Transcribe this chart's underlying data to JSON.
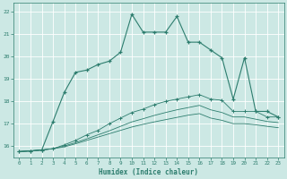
{
  "title": "",
  "xlabel": "Humidex (Indice chaleur)",
  "bg_color": "#cce8e4",
  "grid_color": "#ffffff",
  "line_color": "#2d7d6e",
  "xlim": [
    -0.5,
    23.5
  ],
  "ylim": [
    15.5,
    22.4
  ],
  "xticks": [
    0,
    1,
    2,
    3,
    4,
    5,
    6,
    7,
    8,
    9,
    10,
    11,
    12,
    13,
    14,
    15,
    16,
    17,
    18,
    19,
    20,
    21,
    22,
    23
  ],
  "yticks": [
    16,
    17,
    18,
    19,
    20,
    21,
    22
  ],
  "line1_x": [
    0,
    1,
    2,
    3,
    4,
    5,
    6,
    7,
    8,
    9,
    10,
    11,
    12,
    13,
    14,
    15,
    16,
    17,
    18,
    19,
    20,
    21,
    22,
    23
  ],
  "line1_y": [
    15.75,
    15.78,
    15.82,
    17.1,
    18.4,
    19.3,
    19.4,
    19.65,
    19.8,
    20.2,
    21.9,
    21.1,
    21.1,
    21.1,
    21.8,
    20.65,
    20.65,
    20.3,
    19.95,
    18.1,
    19.95,
    17.55,
    17.55,
    17.3
  ],
  "line2_x": [
    0,
    1,
    2,
    3,
    4,
    5,
    6,
    7,
    8,
    9,
    10,
    11,
    12,
    13,
    14,
    15,
    16,
    17,
    18,
    19,
    20,
    21,
    22,
    23
  ],
  "line2_y": [
    15.75,
    15.78,
    15.82,
    15.88,
    16.05,
    16.25,
    16.5,
    16.7,
    17.0,
    17.25,
    17.5,
    17.65,
    17.85,
    18.0,
    18.1,
    18.2,
    18.3,
    18.1,
    18.05,
    17.55,
    17.55,
    17.55,
    17.3,
    17.3
  ],
  "line3_x": [
    0,
    1,
    2,
    3,
    4,
    5,
    6,
    7,
    8,
    9,
    10,
    11,
    12,
    13,
    14,
    15,
    16,
    17,
    18,
    19,
    20,
    21,
    22,
    23
  ],
  "line3_y": [
    15.75,
    15.78,
    15.82,
    15.88,
    16.0,
    16.15,
    16.32,
    16.5,
    16.68,
    16.88,
    17.08,
    17.22,
    17.37,
    17.5,
    17.62,
    17.72,
    17.82,
    17.62,
    17.5,
    17.3,
    17.3,
    17.2,
    17.1,
    17.05
  ],
  "line4_x": [
    0,
    1,
    2,
    3,
    4,
    5,
    6,
    7,
    8,
    9,
    10,
    11,
    12,
    13,
    14,
    15,
    16,
    17,
    18,
    19,
    20,
    21,
    22,
    23
  ],
  "line4_y": [
    15.75,
    15.78,
    15.82,
    15.88,
    15.96,
    16.1,
    16.25,
    16.4,
    16.55,
    16.7,
    16.85,
    16.97,
    17.08,
    17.18,
    17.28,
    17.38,
    17.45,
    17.25,
    17.15,
    17.0,
    17.0,
    16.95,
    16.88,
    16.82
  ]
}
